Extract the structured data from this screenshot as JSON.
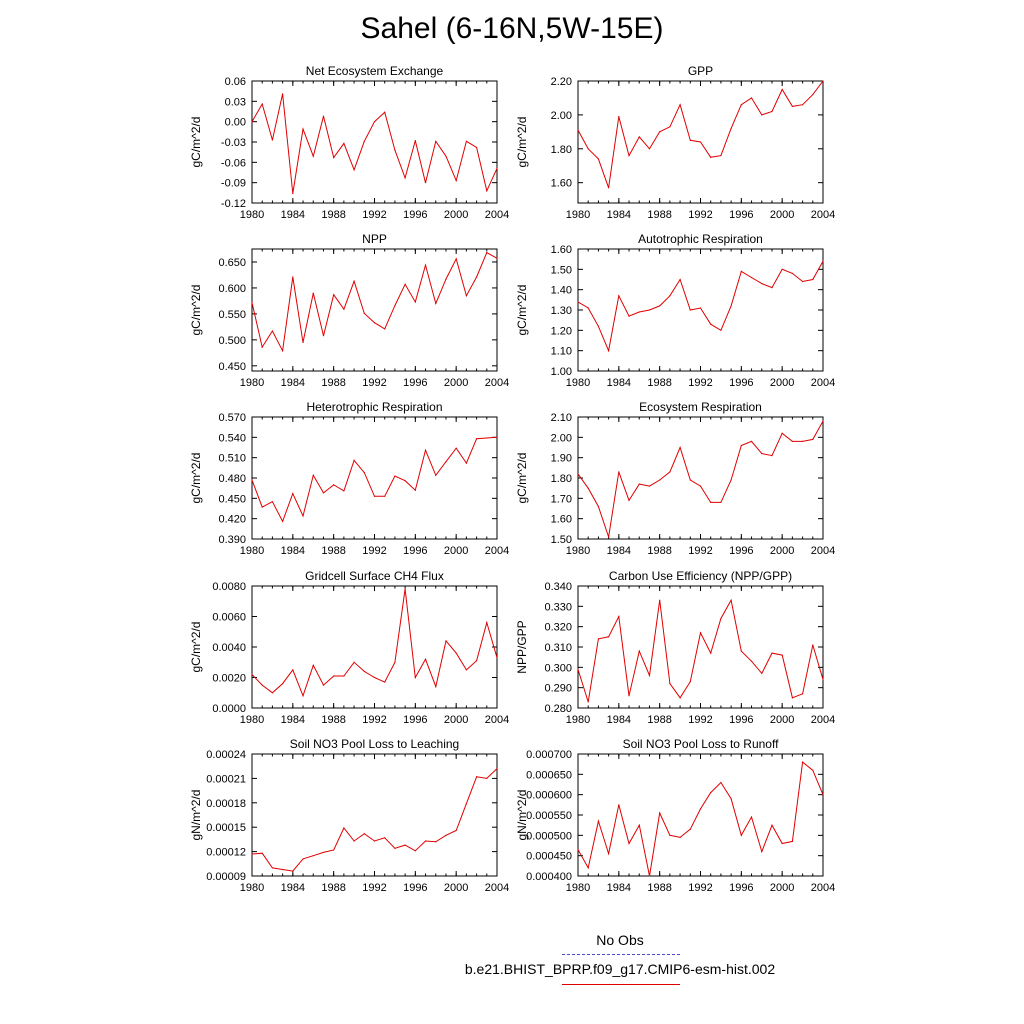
{
  "title": "Sahel (6-16N,5W-15E)",
  "legend": {
    "obs_label": "No Obs",
    "obs_color": "#4b4bd6",
    "model_label": "b.e21.BHIST_BPRP.f09_g17.CMIP6-esm-hist.002",
    "model_color": "#e00000"
  },
  "chart_data": [
    {
      "type": "line",
      "title": "Net Ecosystem Exchange",
      "ylabel": "gC/m^2/d",
      "xlim": [
        1980,
        2004
      ],
      "xticks": [
        "1980",
        "1984",
        "1988",
        "1992",
        "1996",
        "2000",
        "2004"
      ],
      "ylim": [
        -0.12,
        0.06
      ],
      "yticks": [
        "-0.12",
        "-0.09",
        "-0.06",
        "-0.03",
        "0.00",
        "0.03",
        "0.06"
      ],
      "x": [
        1980,
        1981,
        1982,
        1983,
        1984,
        1985,
        1986,
        1987,
        1988,
        1989,
        1990,
        1991,
        1992,
        1993,
        1994,
        1995,
        1996,
        1997,
        1998,
        1999,
        2000,
        2001,
        2002,
        2003,
        2004
      ],
      "series": [
        {
          "values": [
            0.0,
            0.026,
            -0.027,
            0.041,
            -0.106,
            -0.011,
            -0.051,
            0.008,
            -0.053,
            -0.032,
            -0.071,
            -0.029,
            0.0,
            0.014,
            -0.042,
            -0.083,
            -0.028,
            -0.09,
            -0.029,
            -0.051,
            -0.087,
            -0.029,
            -0.038,
            -0.102,
            -0.069
          ]
        }
      ]
    },
    {
      "type": "line",
      "title": "GPP",
      "ylabel": "gC/m^2/d",
      "xlim": [
        1980,
        2004
      ],
      "xticks": [
        "1980",
        "1984",
        "1988",
        "1992",
        "1996",
        "2000",
        "2004"
      ],
      "ylim": [
        1.48,
        2.2
      ],
      "yticks": [
        "1.60",
        "1.80",
        "2.00",
        "2.20"
      ],
      "x": [
        1980,
        1981,
        1982,
        1983,
        1984,
        1985,
        1986,
        1987,
        1988,
        1989,
        1990,
        1991,
        1992,
        1993,
        1994,
        1995,
        1996,
        1997,
        1998,
        1999,
        2000,
        2001,
        2002,
        2003,
        2004
      ],
      "series": [
        {
          "values": [
            1.91,
            1.8,
            1.74,
            1.57,
            1.99,
            1.76,
            1.87,
            1.8,
            1.9,
            1.93,
            2.06,
            1.85,
            1.84,
            1.75,
            1.76,
            1.92,
            2.06,
            2.1,
            2.0,
            2.02,
            2.15,
            2.05,
            2.06,
            2.12,
            2.2
          ]
        }
      ]
    },
    {
      "type": "line",
      "title": "NPP",
      "ylabel": "gC/m^2/d",
      "xlim": [
        1980,
        2004
      ],
      "xticks": [
        "1980",
        "1984",
        "1988",
        "1992",
        "1996",
        "2000",
        "2004"
      ],
      "ylim": [
        0.44,
        0.675
      ],
      "yticks": [
        "0.450",
        "0.500",
        "0.550",
        "0.600",
        "0.650"
      ],
      "x": [
        1980,
        1981,
        1982,
        1983,
        1984,
        1985,
        1986,
        1987,
        1988,
        1989,
        1990,
        1991,
        1992,
        1993,
        1994,
        1995,
        1996,
        1997,
        1998,
        1999,
        2000,
        2001,
        2002,
        2003,
        2004
      ],
      "series": [
        {
          "values": [
            0.572,
            0.486,
            0.517,
            0.479,
            0.621,
            0.495,
            0.59,
            0.508,
            0.587,
            0.559,
            0.613,
            0.551,
            0.533,
            0.521,
            0.566,
            0.607,
            0.573,
            0.644,
            0.57,
            0.617,
            0.656,
            0.585,
            0.621,
            0.668,
            0.657
          ]
        }
      ]
    },
    {
      "type": "line",
      "title": "Autotrophic Respiration",
      "ylabel": "gC/m^2/d",
      "xlim": [
        1980,
        2004
      ],
      "xticks": [
        "1980",
        "1984",
        "1988",
        "1992",
        "1996",
        "2000",
        "2004"
      ],
      "ylim": [
        1.0,
        1.6
      ],
      "yticks": [
        "1.00",
        "1.10",
        "1.20",
        "1.30",
        "1.40",
        "1.50",
        "1.60"
      ],
      "x": [
        1980,
        1981,
        1982,
        1983,
        1984,
        1985,
        1986,
        1987,
        1988,
        1989,
        1990,
        1991,
        1992,
        1993,
        1994,
        1995,
        1996,
        1997,
        1998,
        1999,
        2000,
        2001,
        2002,
        2003,
        2004
      ],
      "series": [
        {
          "values": [
            1.34,
            1.31,
            1.22,
            1.1,
            1.37,
            1.27,
            1.29,
            1.3,
            1.32,
            1.37,
            1.45,
            1.3,
            1.31,
            1.23,
            1.2,
            1.32,
            1.49,
            1.46,
            1.43,
            1.41,
            1.5,
            1.48,
            1.44,
            1.45,
            1.54
          ]
        }
      ]
    },
    {
      "type": "line",
      "title": "Heterotrophic Respiration",
      "ylabel": "gC/m^2/d",
      "xlim": [
        1980,
        2004
      ],
      "xticks": [
        "1980",
        "1984",
        "1988",
        "1992",
        "1996",
        "2000",
        "2004"
      ],
      "ylim": [
        0.39,
        0.57
      ],
      "yticks": [
        "0.390",
        "0.420",
        "0.450",
        "0.480",
        "0.510",
        "0.540",
        "0.570"
      ],
      "x": [
        1980,
        1981,
        1982,
        1983,
        1984,
        1985,
        1986,
        1987,
        1988,
        1989,
        1990,
        1991,
        1992,
        1993,
        1994,
        1995,
        1996,
        1997,
        1998,
        1999,
        2000,
        2001,
        2002,
        2003,
        2004
      ],
      "series": [
        {
          "values": [
            0.477,
            0.437,
            0.445,
            0.416,
            0.457,
            0.424,
            0.484,
            0.458,
            0.47,
            0.461,
            0.506,
            0.488,
            0.453,
            0.453,
            0.483,
            0.476,
            0.462,
            0.521,
            0.484,
            0.504,
            0.524,
            0.502,
            0.538,
            0.539,
            0.54
          ]
        }
      ]
    },
    {
      "type": "line",
      "title": "Ecosystem Respiration",
      "ylabel": "gC/m^2/d",
      "xlim": [
        1980,
        2004
      ],
      "xticks": [
        "1980",
        "1984",
        "1988",
        "1992",
        "1996",
        "2000",
        "2004"
      ],
      "ylim": [
        1.5,
        2.1
      ],
      "yticks": [
        "1.50",
        "1.60",
        "1.70",
        "1.80",
        "1.90",
        "2.00",
        "2.10"
      ],
      "x": [
        1980,
        1981,
        1982,
        1983,
        1984,
        1985,
        1986,
        1987,
        1988,
        1989,
        1990,
        1991,
        1992,
        1993,
        1994,
        1995,
        1996,
        1997,
        1998,
        1999,
        2000,
        2001,
        2002,
        2003,
        2004
      ],
      "series": [
        {
          "values": [
            1.82,
            1.75,
            1.66,
            1.51,
            1.83,
            1.69,
            1.77,
            1.76,
            1.79,
            1.83,
            1.95,
            1.79,
            1.76,
            1.68,
            1.68,
            1.79,
            1.96,
            1.98,
            1.92,
            1.91,
            2.02,
            1.98,
            1.98,
            1.99,
            2.08
          ]
        }
      ]
    },
    {
      "type": "line",
      "title": "Gridcell Surface CH4 Flux",
      "ylabel": "gC/m^2/d",
      "xlim": [
        1980,
        2004
      ],
      "xticks": [
        "1980",
        "1984",
        "1988",
        "1992",
        "1996",
        "2000",
        "2004"
      ],
      "ylim": [
        0.0,
        0.008
      ],
      "yticks": [
        "0.0000",
        "0.0020",
        "0.0040",
        "0.0060",
        "0.0080"
      ],
      "x": [
        1980,
        1981,
        1982,
        1983,
        1984,
        1985,
        1986,
        1987,
        1988,
        1989,
        1990,
        1991,
        1992,
        1993,
        1994,
        1995,
        1996,
        1997,
        1998,
        1999,
        2000,
        2001,
        2002,
        2003,
        2004
      ],
      "series": [
        {
          "values": [
            0.0022,
            0.0015,
            0.001,
            0.0016,
            0.0025,
            0.0008,
            0.0028,
            0.0015,
            0.0021,
            0.0021,
            0.003,
            0.0024,
            0.002,
            0.0017,
            0.003,
            0.0078,
            0.002,
            0.0032,
            0.0014,
            0.0044,
            0.0036,
            0.0025,
            0.0031,
            0.0056,
            0.0033
          ]
        }
      ]
    },
    {
      "type": "line",
      "title": "Carbon Use Efficiency (NPP/GPP)",
      "ylabel": "NPP/GPP",
      "xlim": [
        1980,
        2004
      ],
      "xticks": [
        "1980",
        "1984",
        "1988",
        "1992",
        "1996",
        "2000",
        "2004"
      ],
      "ylim": [
        0.28,
        0.34
      ],
      "yticks": [
        "0.280",
        "0.290",
        "0.300",
        "0.310",
        "0.320",
        "0.330",
        "0.340"
      ],
      "x": [
        1980,
        1981,
        1982,
        1983,
        1984,
        1985,
        1986,
        1987,
        1988,
        1989,
        1990,
        1991,
        1992,
        1993,
        1994,
        1995,
        1996,
        1997,
        1998,
        1999,
        2000,
        2001,
        2002,
        2003,
        2004
      ],
      "series": [
        {
          "values": [
            0.299,
            0.283,
            0.314,
            0.315,
            0.325,
            0.286,
            0.308,
            0.296,
            0.333,
            0.292,
            0.285,
            0.293,
            0.317,
            0.307,
            0.324,
            0.333,
            0.308,
            0.303,
            0.297,
            0.307,
            0.306,
            0.285,
            0.287,
            0.311,
            0.294
          ]
        }
      ]
    },
    {
      "type": "line",
      "title": "Soil NO3 Pool Loss to Leaching",
      "ylabel": "gN/m^2/d",
      "xlim": [
        1980,
        2004
      ],
      "xticks": [
        "1980",
        "1984",
        "1988",
        "1992",
        "1996",
        "2000",
        "2004"
      ],
      "ylim": [
        9e-05,
        0.00024
      ],
      "yticks": [
        "0.00009",
        "0.00012",
        "0.00015",
        "0.00018",
        "0.00021",
        "0.00024"
      ],
      "x": [
        1980,
        1981,
        1982,
        1983,
        1984,
        1985,
        1986,
        1987,
        1988,
        1989,
        1990,
        1991,
        1992,
        1993,
        1994,
        1995,
        1996,
        1997,
        1998,
        1999,
        2000,
        2001,
        2002,
        2003,
        2004
      ],
      "series": [
        {
          "values": [
            0.000117,
            0.000118,
            0.0001,
            9.8e-05,
            9.6e-05,
            0.000111,
            0.000115,
            0.000119,
            0.000122,
            0.000149,
            0.000133,
            0.000142,
            0.000133,
            0.000137,
            0.000124,
            0.000128,
            0.000121,
            0.000133,
            0.000132,
            0.00014,
            0.000146,
            0.000179,
            0.000212,
            0.00021,
            0.000222
          ]
        }
      ]
    },
    {
      "type": "line",
      "title": "Soil NO3 Pool Loss to Runoff",
      "ylabel": "gN/m^2/d",
      "xlim": [
        1980,
        2004
      ],
      "xticks": [
        "1980",
        "1984",
        "1988",
        "1992",
        "1996",
        "2000",
        "2004"
      ],
      "ylim": [
        0.0004,
        0.0007
      ],
      "yticks": [
        "0.000400",
        "0.000450",
        "0.000500",
        "0.000550",
        "0.000600",
        "0.000650",
        "0.000700"
      ],
      "x": [
        1980,
        1981,
        1982,
        1983,
        1984,
        1985,
        1986,
        1987,
        1988,
        1989,
        1990,
        1991,
        1992,
        1993,
        1994,
        1995,
        1996,
        1997,
        1998,
        1999,
        2000,
        2001,
        2002,
        2003,
        2004
      ],
      "series": [
        {
          "values": [
            0.000465,
            0.00042,
            0.000535,
            0.000455,
            0.000575,
            0.00048,
            0.000525,
            0.0004,
            0.000555,
            0.0005,
            0.000495,
            0.000515,
            0.000565,
            0.000605,
            0.00063,
            0.00059,
            0.0005,
            0.000545,
            0.00046,
            0.000525,
            0.00048,
            0.000485,
            0.00068,
            0.00066,
            0.0006
          ]
        }
      ]
    }
  ]
}
